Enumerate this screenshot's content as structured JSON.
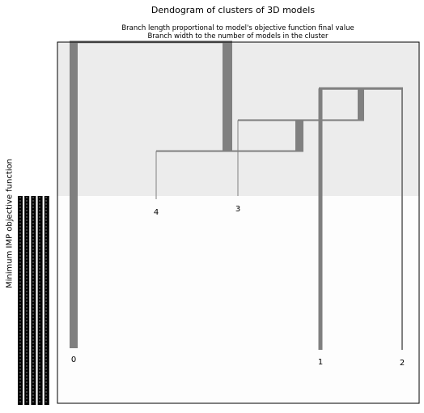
{
  "chart_data": {
    "type": "dendrogram",
    "title": "Dendogram of clusters of 3D models",
    "subtitle_lines": [
      "Branch length proportional to model's objective function final value",
      "Branch width to the number of models in the cluster"
    ],
    "ylabel": "Minimum IMP objective function",
    "leaves": [
      "0",
      "4",
      "3",
      "1",
      "2"
    ],
    "merges": [
      {
        "left": "1",
        "right": "2",
        "height": 0.845
      },
      {
        "left": "3",
        "right": "1+2",
        "height": 0.76
      },
      {
        "left": "4",
        "right": "3+1+2",
        "height": 0.677
      },
      {
        "left": "0",
        "right": "4+3+1+2",
        "height": 0.97
      }
    ],
    "background_bands": [
      "#ececec",
      "#fdfdfd"
    ],
    "branch_color": "#808080"
  }
}
